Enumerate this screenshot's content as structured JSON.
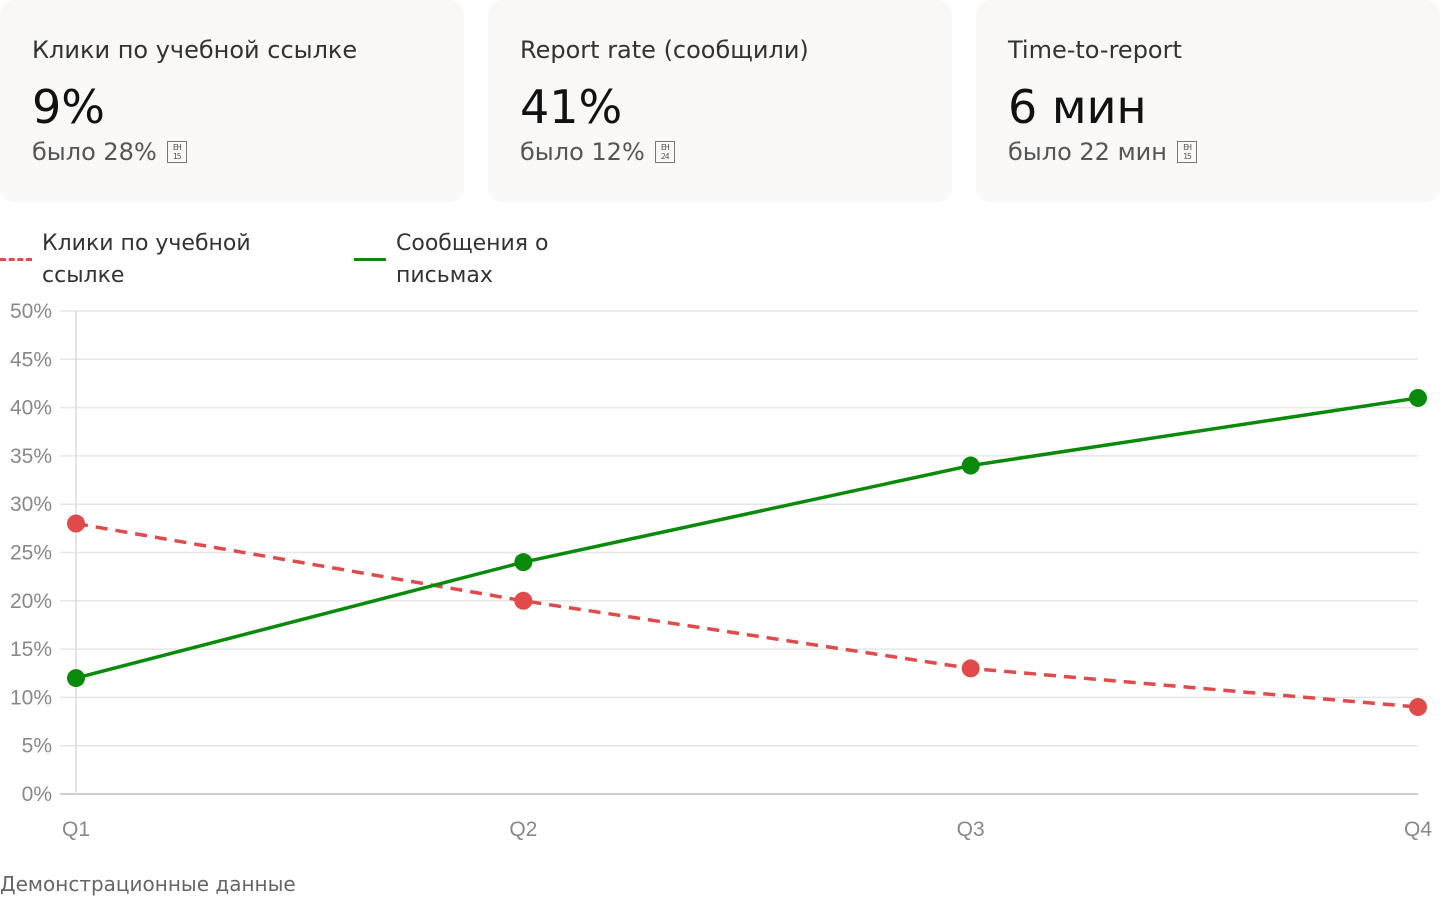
{
  "kpis": [
    {
      "title": "Клики по учебной ссылке",
      "value": "9%",
      "prev": "было 28%",
      "badge": [
        "EH",
        "15"
      ]
    },
    {
      "title": "Report rate (сообщили)",
      "value": "41%",
      "prev": "было 12%",
      "badge": [
        "EH",
        "24"
      ]
    },
    {
      "title": "Time-to-report",
      "value": "6 мин",
      "prev": "было 22 мин",
      "badge": [
        "EH",
        "15"
      ]
    }
  ],
  "chart_data": {
    "type": "line",
    "categories": [
      "Q1",
      "Q2",
      "Q3",
      "Q4"
    ],
    "series": [
      {
        "name": "Клики по учебной ссылке",
        "values": [
          28,
          20,
          13,
          9
        ],
        "color": "#e04a4a",
        "style": "dashed"
      },
      {
        "name": "Сообщения о письмах",
        "values": [
          12,
          24,
          34,
          41
        ],
        "color": "#0a8a0a",
        "style": "solid"
      }
    ],
    "ylim": [
      0,
      50
    ],
    "yticks": [
      "0%",
      "5%",
      "10%",
      "15%",
      "20%",
      "25%",
      "30%",
      "35%",
      "40%",
      "45%",
      "50%"
    ],
    "grid": true,
    "legend": "top-left"
  },
  "legend_labels": {
    "clicks": [
      "Клики по учебной",
      "ссылке"
    ],
    "reports": [
      "Сообщения о",
      "письмах"
    ]
  },
  "footnote": "Демонстрационные данные"
}
